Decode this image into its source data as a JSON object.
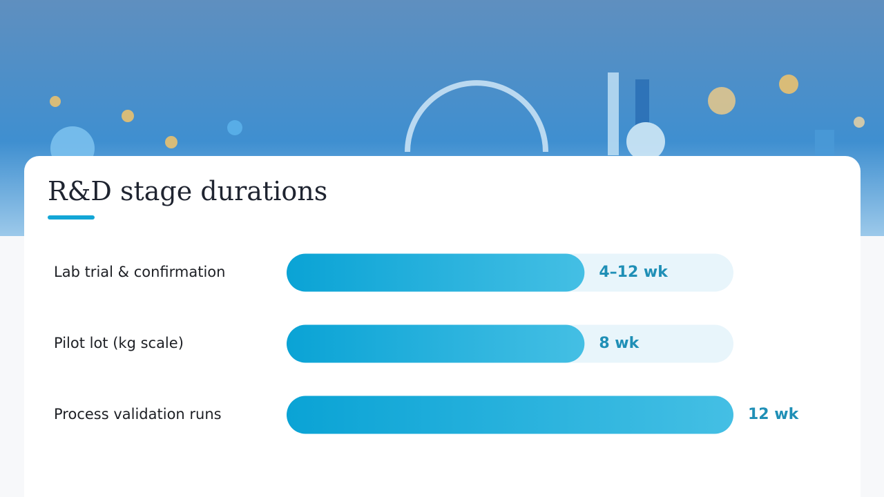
{
  "chart_data": {
    "type": "bar",
    "orientation": "horizontal",
    "title": "R&D stage durations",
    "categories": [
      "Lab trial & confirmation",
      "Pilot lot (kg scale)",
      "Process validation runs"
    ],
    "values": [
      8,
      8,
      12
    ],
    "value_labels": [
      "4–12 wk",
      "8 wk",
      "12 wk"
    ],
    "color": "#1aaedc",
    "xlim": [
      0,
      12
    ]
  }
}
